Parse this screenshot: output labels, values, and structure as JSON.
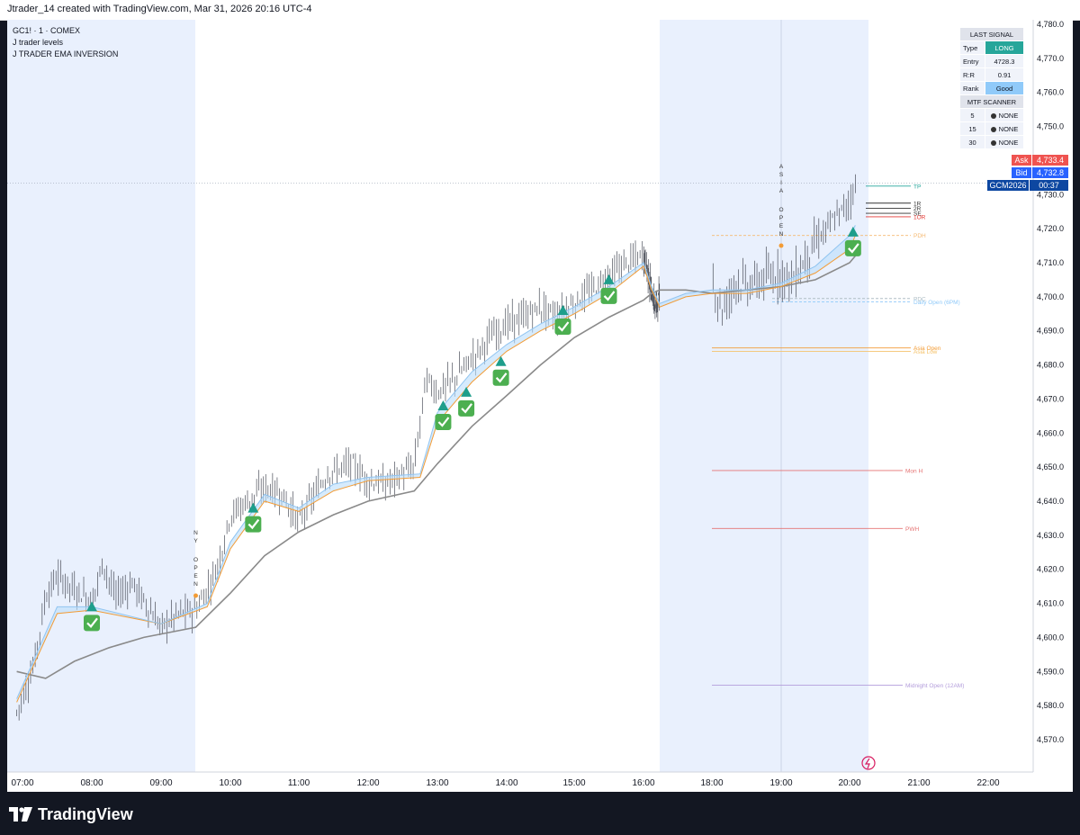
{
  "header": {
    "caption": "Jtrader_14 created with TradingView.com, Mar 31, 2026 20:16 UTC-4"
  },
  "legend": {
    "symbol": "GC1! · 1 · COMEX",
    "indicator1": "J trader levels",
    "indicator2": "J TRADER EMA INVERSION"
  },
  "signal_panel": {
    "title": "LAST SIGNAL",
    "type_label": "Type",
    "type_value": "LONG",
    "entry_label": "Entry",
    "entry_value": "4728.3",
    "rr_label": "R:R",
    "rr_value": "0.91",
    "rank_label": "Rank",
    "rank_value": "Good",
    "mtf_title": "MTF SCANNER",
    "mtf_rows": [
      {
        "tf": "5",
        "status": "NONE"
      },
      {
        "tf": "15",
        "status": "NONE"
      },
      {
        "tf": "30",
        "status": "NONE"
      }
    ]
  },
  "price_tags": {
    "ask_label": "Ask",
    "ask_value": "4,733.4",
    "bid_label": "Bid",
    "bid_value": "4,732.8",
    "symbol_tag": "GCM2026",
    "countdown": "00:37"
  },
  "footer": {
    "brand": "TradingView"
  },
  "colors": {
    "session_bg": "#e9f0fd",
    "up_arrow": "#1e9e8b",
    "check": "#4caf50",
    "ema_fast": "#90c4f0",
    "ema_mid": "#f39c36",
    "ema_slow": "#8a8a8a",
    "ask": "#ef5350",
    "bid": "#2962ff",
    "tag": "#0d47a1"
  },
  "chart_data": {
    "type": "line",
    "instrument": "GC1! · 1 · COMEX",
    "x_ticks": [
      "07:00",
      "08:00",
      "09:00",
      "10:00",
      "11:00",
      "12:00",
      "13:00",
      "14:00",
      "15:00",
      "16:00",
      "18:00",
      "19:00",
      "20:00",
      "21:00",
      "22:00"
    ],
    "y_ticks": [
      4570,
      4580,
      4590,
      4600,
      4610,
      4620,
      4630,
      4640,
      4650,
      4660,
      4670,
      4680,
      4690,
      4700,
      4710,
      4720,
      4730,
      4740,
      4750,
      4760,
      4770,
      4780
    ],
    "ylim": [
      4564,
      4783
    ],
    "price_path": [
      [
        "06:55",
        4578
      ],
      [
        "07:10",
        4592
      ],
      [
        "07:20",
        4612
      ],
      [
        "07:30",
        4618
      ],
      [
        "07:45",
        4614
      ],
      [
        "08:00",
        4611
      ],
      [
        "08:10",
        4622
      ],
      [
        "08:20",
        4612
      ],
      [
        "08:35",
        4616
      ],
      [
        "08:50",
        4608
      ],
      [
        "09:00",
        4603
      ],
      [
        "09:15",
        4607
      ],
      [
        "09:30",
        4608
      ],
      [
        "09:40",
        4614
      ],
      [
        "09:50",
        4622
      ],
      [
        "10:00",
        4636
      ],
      [
        "10:15",
        4640
      ],
      [
        "10:30",
        4644
      ],
      [
        "10:45",
        4642
      ],
      [
        "11:00",
        4634
      ],
      [
        "11:10",
        4640
      ],
      [
        "11:25",
        4648
      ],
      [
        "11:45",
        4651
      ],
      [
        "12:00",
        4646
      ],
      [
        "12:15",
        4645
      ],
      [
        "12:30",
        4648
      ],
      [
        "12:40",
        4650
      ],
      [
        "12:50",
        4676
      ],
      [
        "13:00",
        4672
      ],
      [
        "13:15",
        4676
      ],
      [
        "13:30",
        4682
      ],
      [
        "13:45",
        4688
      ],
      [
        "14:00",
        4692
      ],
      [
        "14:15",
        4694
      ],
      [
        "14:30",
        4697
      ],
      [
        "14:45",
        4694
      ],
      [
        "15:00",
        4698
      ],
      [
        "15:15",
        4702
      ],
      [
        "15:30",
        4706
      ],
      [
        "15:45",
        4710
      ],
      [
        "16:00",
        4712
      ],
      [
        "16:15",
        4708
      ],
      [
        "16:30",
        4701
      ],
      [
        "16:45",
        4697
      ],
      [
        "17:00",
        4700
      ],
      [
        "17:15",
        4698
      ],
      [
        "17:30",
        4702
      ],
      [
        "17:45",
        4710
      ],
      [
        "18:00",
        4704
      ],
      [
        "18:10",
        4696
      ],
      [
        "18:20",
        4705
      ],
      [
        "18:30",
        4703
      ],
      [
        "18:45",
        4705
      ],
      [
        "19:00",
        4707
      ],
      [
        "19:10",
        4705
      ],
      [
        "19:20",
        4710
      ],
      [
        "19:30",
        4716
      ],
      [
        "19:45",
        4722
      ],
      [
        "20:00",
        4728
      ],
      [
        "20:05",
        4733
      ]
    ],
    "ema_fast": [
      [
        "06:55",
        4582
      ],
      [
        "07:30",
        4609
      ],
      [
        "08:00",
        4609
      ],
      [
        "09:00",
        4604
      ],
      [
        "09:40",
        4610
      ],
      [
        "10:00",
        4628
      ],
      [
        "10:30",
        4642
      ],
      [
        "11:00",
        4638
      ],
      [
        "11:30",
        4645
      ],
      [
        "12:00",
        4647
      ],
      [
        "12:45",
        4648
      ],
      [
        "13:00",
        4666
      ],
      [
        "13:30",
        4678
      ],
      [
        "14:00",
        4686
      ],
      [
        "14:30",
        4692
      ],
      [
        "15:00",
        4697
      ],
      [
        "15:30",
        4703
      ],
      [
        "16:00",
        4710
      ],
      [
        "16:30",
        4703
      ],
      [
        "17:00",
        4698
      ],
      [
        "17:30",
        4701
      ],
      [
        "18:00",
        4702
      ],
      [
        "18:30",
        4702
      ],
      [
        "19:00",
        4704
      ],
      [
        "19:30",
        4709
      ],
      [
        "20:00",
        4718
      ],
      [
        "20:05",
        4721
      ]
    ],
    "ema_mid": [
      [
        "06:55",
        4581
      ],
      [
        "07:30",
        4607
      ],
      [
        "08:00",
        4608
      ],
      [
        "09:00",
        4604
      ],
      [
        "09:40",
        4609
      ],
      [
        "10:00",
        4626
      ],
      [
        "10:30",
        4640
      ],
      [
        "11:00",
        4637
      ],
      [
        "11:30",
        4643
      ],
      [
        "12:00",
        4646
      ],
      [
        "12:45",
        4647
      ],
      [
        "13:00",
        4663
      ],
      [
        "13:30",
        4675
      ],
      [
        "14:00",
        4684
      ],
      [
        "14:30",
        4690
      ],
      [
        "15:00",
        4695
      ],
      [
        "15:30",
        4701
      ],
      [
        "16:00",
        4709
      ],
      [
        "16:30",
        4702
      ],
      [
        "17:00",
        4697
      ],
      [
        "17:30",
        4700
      ],
      [
        "18:00",
        4701
      ],
      [
        "18:30",
        4701
      ],
      [
        "19:00",
        4703
      ],
      [
        "19:30",
        4707
      ],
      [
        "20:00",
        4714
      ],
      [
        "20:05",
        4718
      ]
    ],
    "ema_slow": [
      [
        "06:55",
        4590
      ],
      [
        "07:20",
        4588
      ],
      [
        "07:45",
        4593
      ],
      [
        "08:15",
        4597
      ],
      [
        "08:45",
        4600
      ],
      [
        "09:30",
        4603
      ],
      [
        "10:00",
        4613
      ],
      [
        "10:30",
        4624
      ],
      [
        "11:00",
        4631
      ],
      [
        "11:30",
        4636
      ],
      [
        "12:00",
        4640
      ],
      [
        "12:40",
        4643
      ],
      [
        "13:00",
        4651
      ],
      [
        "13:30",
        4662
      ],
      [
        "14:00",
        4671
      ],
      [
        "14:30",
        4680
      ],
      [
        "15:00",
        4688
      ],
      [
        "15:30",
        4694
      ],
      [
        "16:00",
        4699
      ],
      [
        "16:30",
        4701
      ],
      [
        "17:00",
        4702
      ],
      [
        "17:30",
        4702
      ],
      [
        "18:00",
        4701
      ],
      [
        "18:30",
        4702
      ],
      [
        "19:00",
        4703
      ],
      [
        "19:30",
        4705
      ],
      [
        "20:00",
        4710
      ],
      [
        "20:05",
        4712
      ]
    ],
    "signals": [
      {
        "time": "08:00",
        "price": 4609
      },
      {
        "time": "10:20",
        "price": 4638
      },
      {
        "time": "13:05",
        "price": 4668
      },
      {
        "time": "13:25",
        "price": 4672
      },
      {
        "time": "13:55",
        "price": 4681
      },
      {
        "time": "14:50",
        "price": 4696
      },
      {
        "time": "15:30",
        "price": 4705
      },
      {
        "time": "20:03",
        "price": 4719
      }
    ],
    "levels": [
      {
        "label": "TP",
        "price": 4732.5
      },
      {
        "label": "1R",
        "price": 4727.5
      },
      {
        "label": "2R",
        "price": 4726
      },
      {
        "label": "SE",
        "price": 4724.5
      },
      {
        "label": "1OR",
        "price": 4723.5
      },
      {
        "label": "PDH",
        "price": 4718
      },
      {
        "label": "PDC",
        "price": 4699.5
      },
      {
        "label": "Daily Open (6PM)",
        "price": 4698.5
      },
      {
        "label": "Asia Open",
        "price": 4685
      },
      {
        "label": "Asia Low",
        "price": 4684
      },
      {
        "label": "Mon H",
        "price": 4649
      },
      {
        "label": "PWH",
        "price": 4632
      },
      {
        "label": "Midnight Open (12AM)",
        "price": 4586
      }
    ],
    "session_labels": [
      {
        "text": "NY OPEN",
        "time": "09:30"
      },
      {
        "text": "ASIA OPEN",
        "time": "19:00"
      }
    ],
    "current_price": 4733.4
  }
}
